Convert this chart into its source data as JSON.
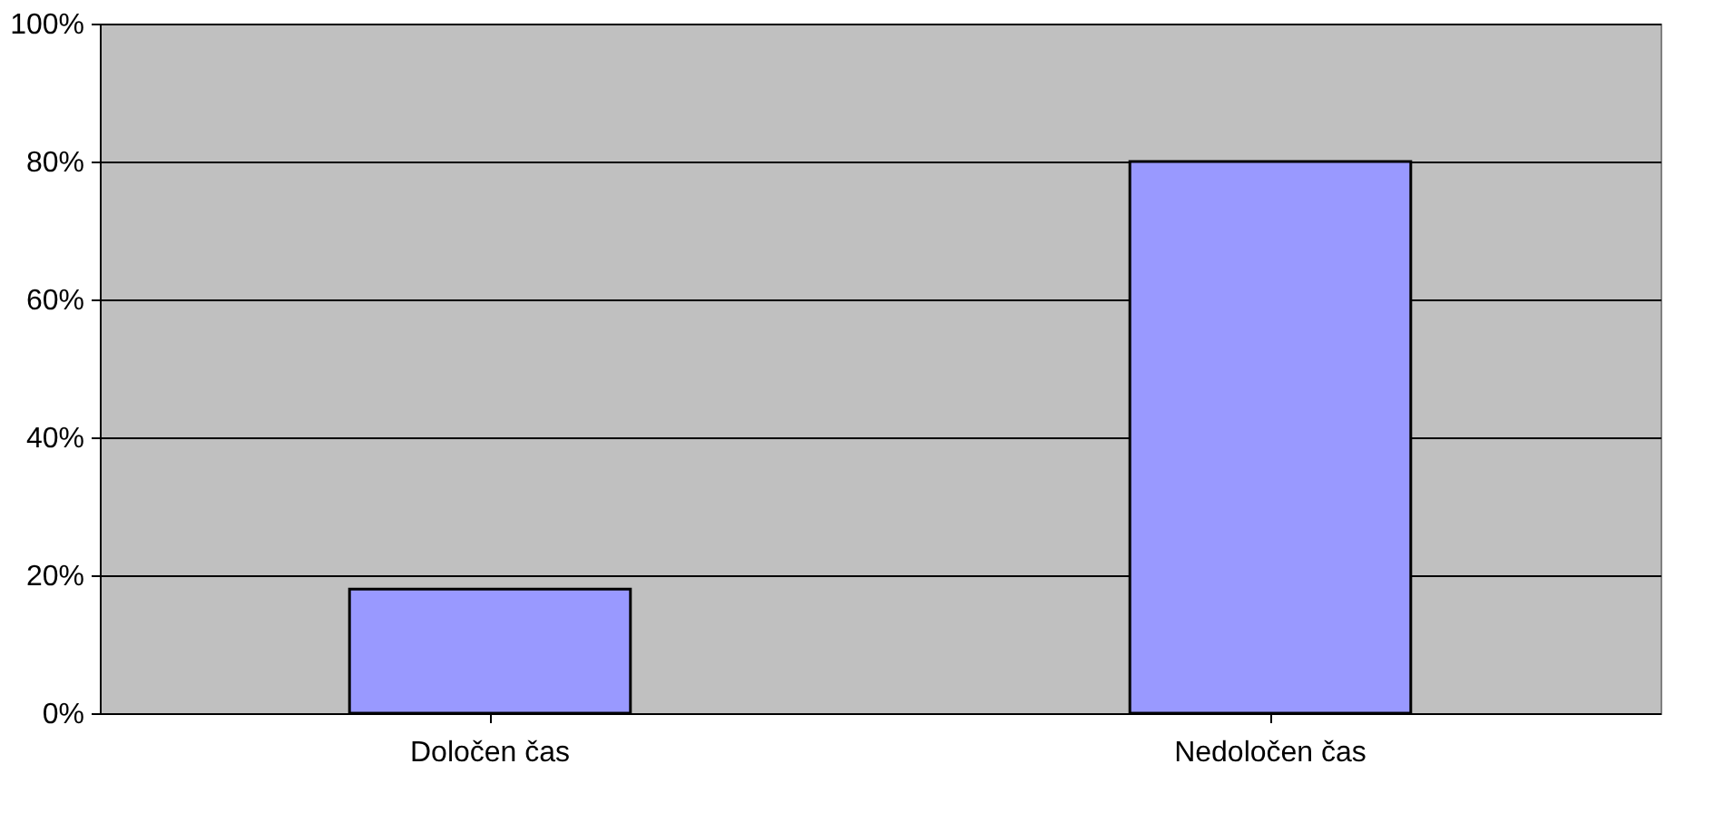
{
  "chart_data": {
    "type": "bar",
    "categories": [
      "Določen čas",
      "Nedoločen čas"
    ],
    "values": [
      18,
      80
    ],
    "color": "#9999ff",
    "ylim": [
      0,
      100
    ],
    "yticks": [
      {
        "value": 0,
        "label": "0%"
      },
      {
        "value": 20,
        "label": "20%"
      },
      {
        "value": 40,
        "label": "40%"
      },
      {
        "value": 60,
        "label": "60%"
      },
      {
        "value": 80,
        "label": "80%"
      },
      {
        "value": 100,
        "label": "100%"
      }
    ],
    "grid": "y",
    "legend": false
  }
}
